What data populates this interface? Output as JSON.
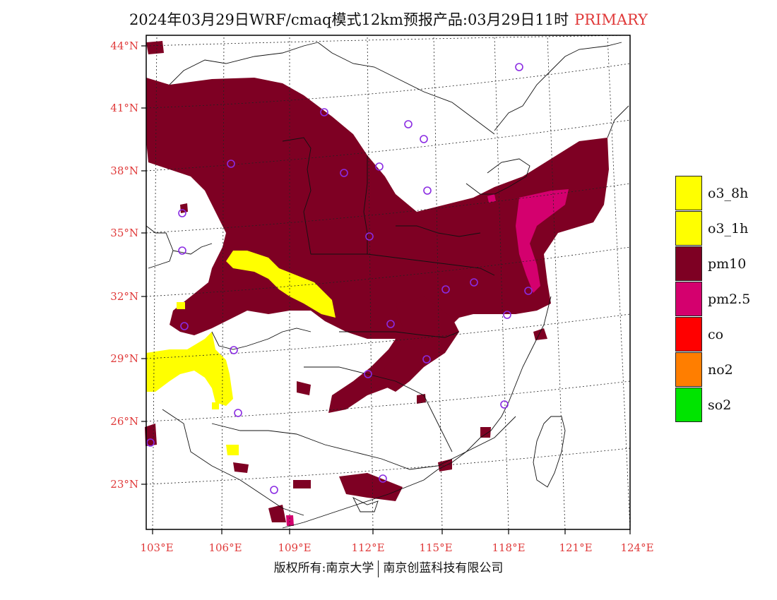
{
  "title": {
    "main": "2024年03月29日WRF/cmaq模式12km预报产品:03月29日11时",
    "tag": "PRIMARY"
  },
  "lat_labels": [
    "44°N",
    "41°N",
    "38°N",
    "35°N",
    "32°N",
    "29°N",
    "26°N",
    "23°N"
  ],
  "lon_labels": [
    "103°E",
    "106°E",
    "109°E",
    "112°E",
    "115°E",
    "118°E",
    "121°E",
    "124°E"
  ],
  "legend": [
    {
      "label": "o3_8h",
      "color": "#ffff00"
    },
    {
      "label": "o3_1h",
      "color": "#ffff00"
    },
    {
      "label": "pm10",
      "color": "#7e0023"
    },
    {
      "label": "pm2.5",
      "color": "#d4006e"
    },
    {
      "label": "co",
      "color": "#ff0000"
    },
    {
      "label": "no2",
      "color": "#ff7e00"
    },
    {
      "label": "so2",
      "color": "#00e400"
    }
  ],
  "colors": {
    "pm10": "#7e0023",
    "pm25": "#d4006e",
    "o3": "#ffff00",
    "station": "#8a2be2",
    "label": "#e03a3a"
  },
  "footer": {
    "left": "版权所有:南京大学",
    "right": "南京创蓝科技有限公司"
  }
}
